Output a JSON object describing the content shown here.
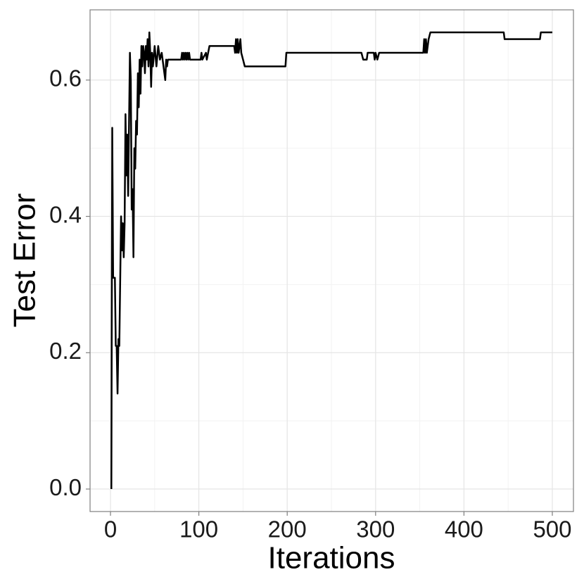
{
  "chart_data": {
    "type": "line",
    "x_label": "Iterations",
    "y_label": "Test Error",
    "xlim": [
      -23.1,
      523.9
    ],
    "ylim": [
      -0.033,
      0.703
    ],
    "xticks": [
      0,
      100,
      200,
      300,
      400,
      500
    ],
    "yticks": [
      {
        "value": 0,
        "label": "0.0"
      },
      0.2,
      0.4,
      0.6
    ],
    "x_minor_grid": [
      50,
      150,
      250,
      350,
      450
    ],
    "y_minor_grid": [
      0.1,
      0.3,
      0.5
    ],
    "grid": true,
    "color": "#000000",
    "x": [
      1,
      2,
      3,
      5,
      6,
      7,
      8,
      9,
      10,
      12,
      13,
      14,
      15,
      16,
      17,
      18,
      19,
      20,
      22,
      23,
      24,
      25,
      26,
      27,
      28,
      29,
      30,
      31,
      32,
      33,
      34,
      35,
      36,
      37,
      38,
      39,
      40,
      41,
      42,
      43,
      44,
      45,
      46,
      47,
      48,
      50,
      52,
      54,
      56,
      58,
      60,
      62,
      63,
      64,
      65,
      80,
      81,
      82,
      83,
      84,
      85,
      86,
      87,
      88,
      89,
      90,
      102,
      103,
      104,
      108,
      109,
      112,
      140,
      141,
      142,
      143,
      144,
      145,
      147,
      148,
      150,
      152,
      198,
      199,
      284,
      286,
      290,
      291,
      298,
      299,
      300,
      302,
      304,
      354,
      355,
      356,
      357,
      358,
      360,
      362,
      445,
      446,
      486,
      487,
      500
    ],
    "values": [
      0,
      0.53,
      0.31,
      0.31,
      0.21,
      0.21,
      0.14,
      0.22,
      0.21,
      0.4,
      0.35,
      0.39,
      0.34,
      0.39,
      0.55,
      0.46,
      0.52,
      0.43,
      0.64,
      0.6,
      0.41,
      0.44,
      0.34,
      0.5,
      0.47,
      0.54,
      0.52,
      0.61,
      0.56,
      0.63,
      0.58,
      0.65,
      0.62,
      0.65,
      0.64,
      0.61,
      0.65,
      0.63,
      0.66,
      0.62,
      0.67,
      0.64,
      0.59,
      0.64,
      0.62,
      0.65,
      0.62,
      0.65,
      0.63,
      0.64,
      0.62,
      0.6,
      0.63,
      0.62,
      0.63,
      0.63,
      0.64,
      0.63,
      0.64,
      0.63,
      0.64,
      0.63,
      0.64,
      0.63,
      0.64,
      0.63,
      0.63,
      0.64,
      0.63,
      0.64,
      0.63,
      0.65,
      0.65,
      0.64,
      0.66,
      0.64,
      0.66,
      0.64,
      0.66,
      0.64,
      0.63,
      0.62,
      0.62,
      0.64,
      0.64,
      0.63,
      0.63,
      0.64,
      0.64,
      0.63,
      0.64,
      0.63,
      0.64,
      0.64,
      0.66,
      0.64,
      0.66,
      0.64,
      0.66,
      0.67,
      0.67,
      0.66,
      0.66,
      0.67,
      0.67
    ]
  }
}
